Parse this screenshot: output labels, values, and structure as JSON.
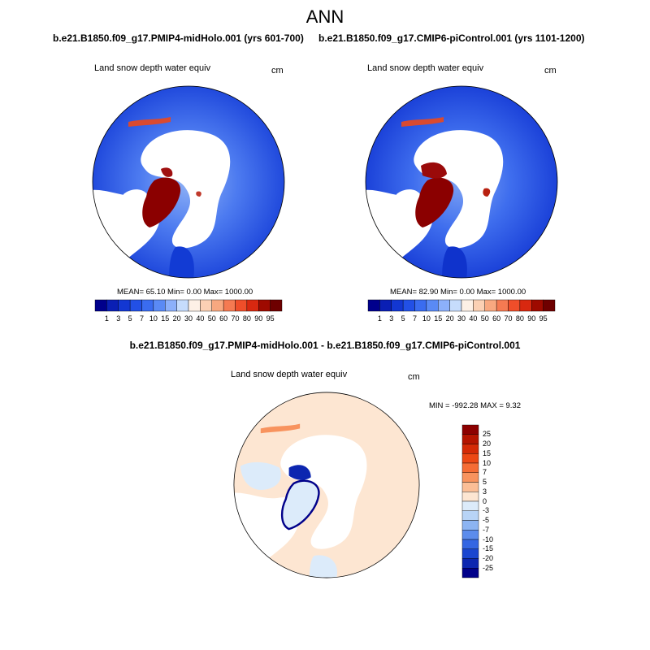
{
  "figure": {
    "main_title": "ANN"
  },
  "panels": [
    {
      "case_title": "b.e21.B1850.f09_g17.PMIP4-midHolo.001 (yrs 601-700)",
      "variable": "Land snow depth water equiv",
      "units": "cm",
      "stats": "MEAN=  65.10  Min=   0.00  Max= 1000.00"
    },
    {
      "case_title": "b.e21.B1850.f09_g17.CMIP6-piControl.001 (yrs 1101-1200)",
      "variable": "Land snow depth water equiv",
      "units": "cm",
      "stats": "MEAN=  82.90  Min=   0.00  Max= 1000.00"
    },
    {
      "case_title": "b.e21.B1850.f09_g17.PMIP4-midHolo.001 - b.e21.B1850.f09_g17.CMIP6-piControl.001",
      "variable": "Land snow depth water equiv",
      "units": "cm",
      "stats": "MIN = -992.28 MAX =   9.32"
    }
  ],
  "colorbar_abs": {
    "ticks": [
      "1",
      "3",
      "5",
      "7",
      "10",
      "15",
      "20",
      "30",
      "40",
      "50",
      "60",
      "70",
      "80",
      "90",
      "95"
    ],
    "colors": [
      "#00008c",
      "#0a1fb4",
      "#1337d2",
      "#2250e6",
      "#3a6cf0",
      "#5a8af5",
      "#8cb0fa",
      "#c6dcfc",
      "#fdf0e6",
      "#fbd0b4",
      "#f8a880",
      "#f57a52",
      "#ef4e2a",
      "#d82810",
      "#9e0a00",
      "#6e0000"
    ]
  },
  "colorbar_diff": {
    "ticks": [
      "25",
      "20",
      "15",
      "10",
      "7",
      "5",
      "3",
      "0",
      "-3",
      "-5",
      "-7",
      "-10",
      "-15",
      "-20",
      "-25"
    ],
    "colors": [
      "#8c0000",
      "#b41400",
      "#d42a06",
      "#ec4814",
      "#f56c34",
      "#f8935e",
      "#fbbe96",
      "#fde6d2",
      "#dcebfa",
      "#b8d4f6",
      "#8cb4f2",
      "#5c8cec",
      "#3466e2",
      "#1a46d0",
      "#0c26b0",
      "#00008a"
    ]
  }
}
